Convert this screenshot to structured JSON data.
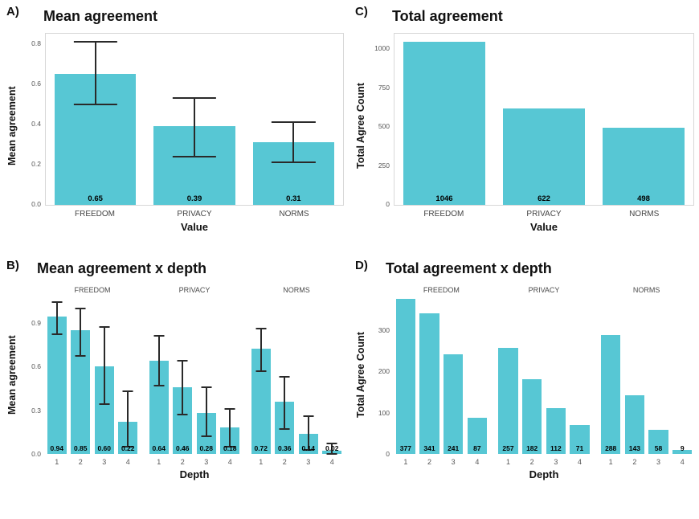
{
  "page": {
    "background": "#ffffff"
  },
  "colors": {
    "bar": "#57c7d4",
    "error_bar": "#2a2a2a",
    "axis_text": "#555555",
    "title_text": "#111111"
  },
  "chart_data": [
    {
      "id": "A",
      "type": "bar",
      "panel_label": "A)",
      "title": "Mean agreement",
      "xlabel": "Value",
      "ylabel": "Mean agreement",
      "ylim": [
        0,
        0.85
      ],
      "yticks": [
        0,
        0.2,
        0.4,
        0.6,
        0.8
      ],
      "ytick_labels": [
        "0.0",
        "0.2",
        "0.4",
        "0.6",
        "0.8"
      ],
      "grid": false,
      "legend": false,
      "error_bars": true,
      "groups": [
        {
          "strip": "",
          "bars": [
            {
              "x": "FREEDOM",
              "value": 0.65,
              "label": "0.65",
              "err": [
                0.5,
                0.81
              ]
            },
            {
              "x": "PRIVACY",
              "value": 0.39,
              "label": "0.39",
              "err": [
                0.24,
                0.53
              ]
            },
            {
              "x": "NORMS",
              "value": 0.31,
              "label": "0.31",
              "err": [
                0.21,
                0.41
              ]
            }
          ]
        }
      ]
    },
    {
      "id": "C",
      "type": "bar",
      "panel_label": "C)",
      "title": "Total agreement",
      "xlabel": "Value",
      "ylabel": "Total Agree Count",
      "ylim": [
        0,
        1100
      ],
      "yticks": [
        0,
        250,
        500,
        750,
        1000
      ],
      "ytick_labels": [
        "0",
        "250",
        "500",
        "750",
        "1000"
      ],
      "grid": false,
      "legend": false,
      "error_bars": false,
      "groups": [
        {
          "strip": "",
          "bars": [
            {
              "x": "FREEDOM",
              "value": 1046,
              "label": "1046"
            },
            {
              "x": "PRIVACY",
              "value": 622,
              "label": "622"
            },
            {
              "x": "NORMS",
              "value": 498,
              "label": "498"
            }
          ]
        }
      ]
    },
    {
      "id": "B",
      "type": "bar",
      "panel_label": "B)",
      "title": "Mean agreement x depth",
      "xlabel": "Depth",
      "ylabel": "Mean agreement",
      "ylim": [
        0,
        1.08
      ],
      "yticks": [
        0,
        0.3,
        0.6,
        0.9
      ],
      "ytick_labels": [
        "0.0",
        "0.3",
        "0.6",
        "0.9"
      ],
      "grid": false,
      "legend": false,
      "error_bars": true,
      "groups": [
        {
          "strip": "FREEDOM",
          "bars": [
            {
              "x": "1",
              "value": 0.94,
              "label": "0.94",
              "err": [
                0.82,
                1.04
              ]
            },
            {
              "x": "2",
              "value": 0.85,
              "label": "0.85",
              "err": [
                0.67,
                1.0
              ]
            },
            {
              "x": "3",
              "value": 0.6,
              "label": "0.60",
              "err": [
                0.34,
                0.87
              ]
            },
            {
              "x": "4",
              "value": 0.22,
              "label": "0.22",
              "err": [
                0.05,
                0.43
              ]
            }
          ]
        },
        {
          "strip": "PRIVACY",
          "bars": [
            {
              "x": "1",
              "value": 0.64,
              "label": "0.64",
              "err": [
                0.47,
                0.81
              ]
            },
            {
              "x": "2",
              "value": 0.46,
              "label": "0.46",
              "err": [
                0.27,
                0.64
              ]
            },
            {
              "x": "3",
              "value": 0.28,
              "label": "0.28",
              "err": [
                0.12,
                0.46
              ]
            },
            {
              "x": "4",
              "value": 0.18,
              "label": "0.18",
              "err": [
                0.05,
                0.31
              ]
            }
          ]
        },
        {
          "strip": "NORMS",
          "bars": [
            {
              "x": "1",
              "value": 0.72,
              "label": "0.72",
              "err": [
                0.57,
                0.86
              ]
            },
            {
              "x": "2",
              "value": 0.36,
              "label": "0.36",
              "err": [
                0.17,
                0.53
              ]
            },
            {
              "x": "3",
              "value": 0.14,
              "label": "0.14",
              "err": [
                0.03,
                0.26
              ]
            },
            {
              "x": "4",
              "value": 0.02,
              "label": "0.02",
              "err": [
                0.0,
                0.07
              ]
            }
          ]
        }
      ]
    },
    {
      "id": "D",
      "type": "bar",
      "panel_label": "D)",
      "title": "Total agreement x depth",
      "xlabel": "Depth",
      "ylabel": "Total Agree Count",
      "ylim": [
        0,
        382
      ],
      "yticks": [
        0,
        100,
        200,
        300
      ],
      "ytick_labels": [
        "0",
        "100",
        "200",
        "300"
      ],
      "grid": false,
      "legend": false,
      "error_bars": false,
      "groups": [
        {
          "strip": "FREEDOM",
          "bars": [
            {
              "x": "1",
              "value": 377,
              "label": "377"
            },
            {
              "x": "2",
              "value": 341,
              "label": "341"
            },
            {
              "x": "3",
              "value": 241,
              "label": "241"
            },
            {
              "x": "4",
              "value": 87,
              "label": "87"
            }
          ]
        },
        {
          "strip": "PRIVACY",
          "bars": [
            {
              "x": "1",
              "value": 257,
              "label": "257"
            },
            {
              "x": "2",
              "value": 182,
              "label": "182"
            },
            {
              "x": "3",
              "value": 112,
              "label": "112"
            },
            {
              "x": "4",
              "value": 71,
              "label": "71"
            }
          ]
        },
        {
          "strip": "NORMS",
          "bars": [
            {
              "x": "1",
              "value": 288,
              "label": "288"
            },
            {
              "x": "2",
              "value": 143,
              "label": "143"
            },
            {
              "x": "3",
              "value": 58,
              "label": "58"
            },
            {
              "x": "4",
              "value": 9,
              "label": "9"
            }
          ]
        }
      ]
    }
  ]
}
